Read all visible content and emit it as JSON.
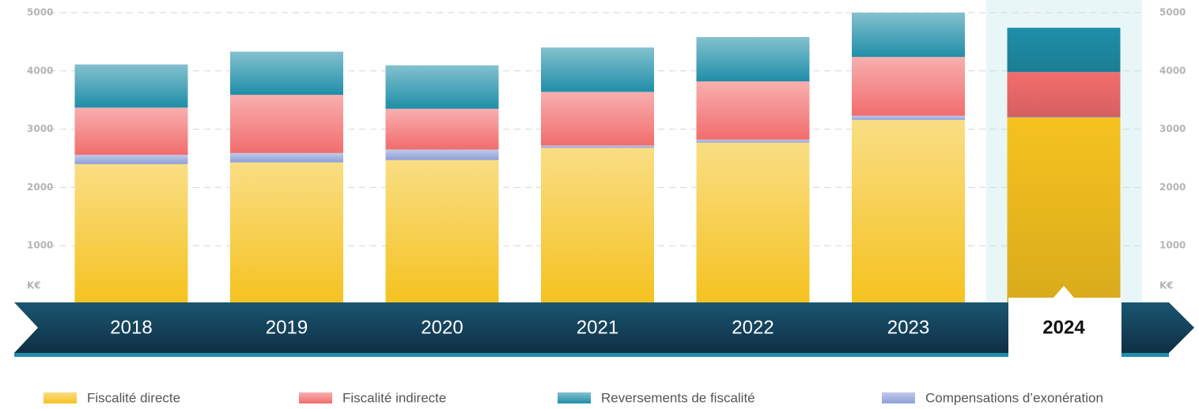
{
  "chart_data": {
    "type": "stacked-bar",
    "unit": "K€",
    "categories": [
      "2018",
      "2019",
      "2020",
      "2021",
      "2022",
      "2023",
      "2024"
    ],
    "series": [
      {
        "name": "Fiscalité directe",
        "color": "#f5c21f",
        "values": [
          2400,
          2430,
          2470,
          2680,
          2770,
          3160,
          3200
        ]
      },
      {
        "name": "Compensations d’exonération",
        "color": "#8e9fd8",
        "values": [
          160,
          160,
          180,
          40,
          50,
          70,
          10
        ]
      },
      {
        "name": "Fiscalité indirecte",
        "color": "#f26d6d",
        "values": [
          810,
          1000,
          700,
          920,
          1000,
          1010,
          770
        ]
      },
      {
        "name": "Reversements de fiscalité",
        "color": "#1f8ea8",
        "values": [
          740,
          740,
          745,
          760,
          760,
          760,
          760
        ]
      }
    ],
    "legend_order": [
      0,
      2,
      3,
      1
    ],
    "ylim": [
      0,
      5000
    ],
    "yticks": [
      1000,
      2000,
      3000,
      4000,
      5000
    ],
    "grid": true
  }
}
